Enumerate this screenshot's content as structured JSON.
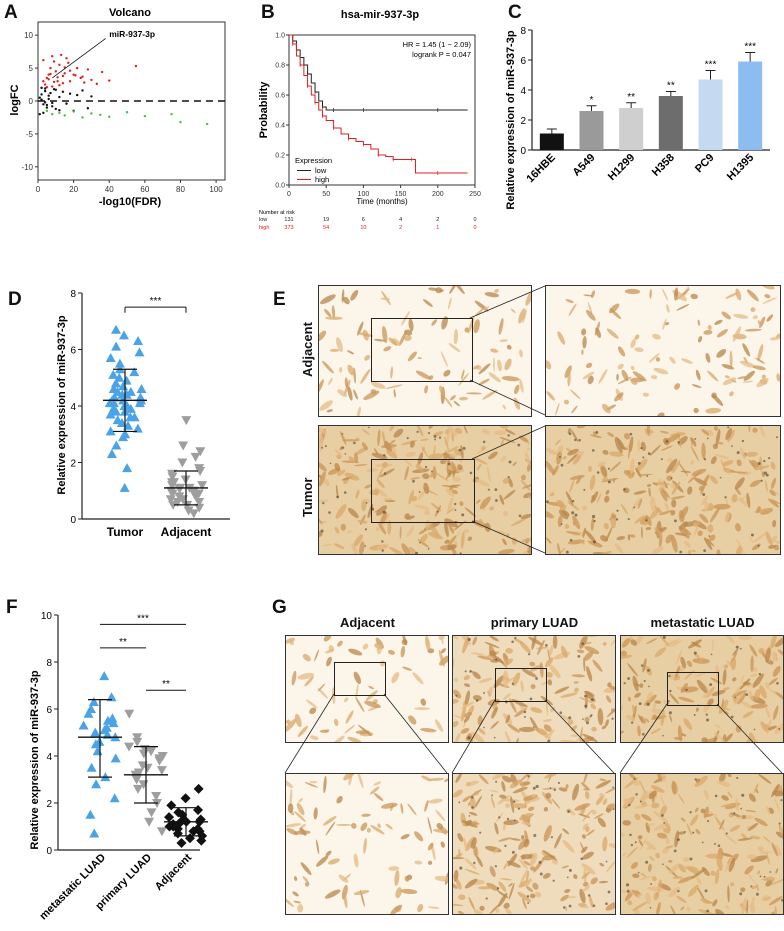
{
  "panels": {
    "A": {
      "label": "A",
      "chart_data": {
        "type": "scatter",
        "title": "Volcano",
        "xlabel": "-log10(FDR)",
        "ylabel": "logFC",
        "xlim": [
          0,
          105
        ],
        "ylim": [
          -12,
          12
        ],
        "xticks": [
          "0",
          "20",
          "40",
          "60",
          "80",
          "100"
        ],
        "yticks": [
          "-10",
          "-5",
          "0",
          "5",
          "10"
        ],
        "annotation": "miR-937-3p",
        "series": [
          {
            "name": "",
            "color": "#e02020",
            "x": [
              2,
              3,
              4,
              5,
              6,
              7,
              8,
              9,
              10,
              11,
              12,
              13,
              14,
              15,
              16,
              18,
              20,
              22,
              24,
              26,
              28,
              30,
              33,
              36,
              40,
              55,
              8,
              12,
              15,
              6,
              9,
              18,
              25,
              3,
              5,
              7,
              11,
              14,
              17,
              21
            ],
            "y": [
              2,
              3,
              2.5,
              3.5,
              4,
              5,
              2.2,
              6,
              4.5,
              3,
              5.5,
              7,
              3.8,
              4.2,
              6.5,
              3,
              4,
              5,
              3.5,
              2.8,
              4.8,
              3.2,
              2.6,
              4.4,
              3.1,
              5.3,
              6.8,
              2.4,
              5.1,
              3.3,
              2.9,
              4.6,
              3.7,
              6.2,
              2.1,
              4.1,
              3.6,
              2.7,
              5.8,
              3.9
            ]
          },
          {
            "name": "",
            "color": "#111111",
            "x": [
              1,
              2,
              3,
              4,
              5,
              6,
              7,
              8,
              9,
              10,
              12,
              14,
              16,
              18,
              20,
              22,
              25,
              28,
              30,
              1,
              2,
              3,
              4,
              5,
              6,
              8,
              10,
              12,
              2,
              4
            ],
            "y": [
              0.5,
              1,
              -0.5,
              1.5,
              -1,
              0.8,
              1.2,
              -0.8,
              1.8,
              -1.2,
              0.6,
              1.4,
              -0.4,
              1.1,
              -1.5,
              0.9,
              1.6,
              -1.1,
              0.7,
              -2,
              2,
              -1.8,
              1.9,
              -0.6,
              0.3,
              -0.3,
              1.7,
              -1.4,
              0.2,
              -0.2
            ]
          },
          {
            "name": "",
            "color": "#40c040",
            "x": [
              5,
              8,
              12,
              15,
              20,
              25,
              30,
              35,
              40,
              50,
              60,
              75,
              80,
              95
            ],
            "y": [
              -1.5,
              -2,
              -1.8,
              -2.2,
              -1.6,
              -2.5,
              -1.9,
              -2.1,
              -2.4,
              -1.7,
              -2.3,
              -2,
              -3.2,
              -3.5
            ]
          }
        ]
      }
    },
    "B": {
      "label": "B",
      "chart_data": {
        "type": "line",
        "title": "hsa-mir-937-3p",
        "xlabel": "Time (months)",
        "ylabel": "Probability",
        "xlim": [
          0,
          250
        ],
        "ylim": [
          0,
          1
        ],
        "xticks": [
          "0",
          "50",
          "100",
          "150",
          "200",
          "250"
        ],
        "yticks": [
          "0.0",
          "0.2",
          "0.4",
          "0.6",
          "0.8",
          "1.0"
        ],
        "hr_text": "HR = 1.45 (1 − 2.09)",
        "logrank_text": "logrank P = 0.047",
        "legend_title": "Expression",
        "series": [
          {
            "name": "low",
            "color": "#222222",
            "x": [
              0,
              5,
              10,
              15,
              20,
              25,
              30,
              35,
              40,
              45,
              50,
              60,
              80,
              100,
              150,
              200,
              240
            ],
            "y": [
              1,
              0.96,
              0.9,
              0.85,
              0.8,
              0.74,
              0.68,
              0.62,
              0.56,
              0.52,
              0.5,
              0.5,
              0.5,
              0.5,
              0.5,
              0.5,
              0.5
            ]
          },
          {
            "name": "high",
            "color": "#e02020",
            "x": [
              0,
              5,
              10,
              15,
              20,
              25,
              30,
              35,
              40,
              45,
              50,
              60,
              70,
              80,
              90,
              100,
              110,
              120,
              130,
              140,
              150,
              165,
              170,
              200,
              240
            ],
            "y": [
              1,
              0.94,
              0.86,
              0.8,
              0.73,
              0.66,
              0.6,
              0.55,
              0.5,
              0.46,
              0.43,
              0.38,
              0.34,
              0.31,
              0.29,
              0.27,
              0.24,
              0.2,
              0.19,
              0.17,
              0.17,
              0.17,
              0.08,
              0.08,
              0.08
            ]
          }
        ],
        "risk_table": {
          "header": "Number at risk",
          "rows": [
            {
              "name": "low",
              "color": "#222222",
              "values": [
                "131",
                "19",
                "6",
                "4",
                "2",
                "0"
              ]
            },
            {
              "name": "high",
              "color": "#e02020",
              "values": [
                "373",
                "54",
                "10",
                "2",
                "1",
                "0"
              ]
            }
          ]
        }
      }
    },
    "C": {
      "label": "C",
      "chart_data": {
        "type": "bar",
        "ylabel": "Relative expression of miR-937-3p",
        "ylim": [
          0,
          8
        ],
        "yticks": [
          "0",
          "2",
          "4",
          "6",
          "8"
        ],
        "categories": [
          "16HBE",
          "A549",
          "H1299",
          "H358",
          "PC9",
          "H1395"
        ],
        "values": [
          1.1,
          2.6,
          2.8,
          3.6,
          4.7,
          5.9
        ],
        "errors": [
          0.3,
          0.35,
          0.35,
          0.3,
          0.6,
          0.6
        ],
        "significance": [
          "",
          "*",
          "**",
          "**",
          "***",
          "***"
        ],
        "colors": [
          "#111111",
          "#9a9a9a",
          "#cfcfcf",
          "#6d6d6d",
          "#c5d9f1",
          "#8dbdf0"
        ]
      }
    },
    "D": {
      "label": "D",
      "chart_data": {
        "type": "scatter",
        "ylabel": "Relative expression of miR-937-3p",
        "ylim": [
          0,
          8
        ],
        "yticks": [
          "0",
          "2",
          "4",
          "6",
          "8"
        ],
        "categories": [
          "Tumor",
          "Adjacent"
        ],
        "significance": "***",
        "series": [
          {
            "name": "Tumor",
            "color": "#4aa3e6",
            "mean": 4.2,
            "sd_low": 3.1,
            "sd_high": 5.3,
            "values": [
              1.1,
              1.8,
              2.3,
              2.6,
              2.9,
              3.0,
              3.1,
              3.2,
              3.3,
              3.4,
              3.5,
              3.6,
              3.6,
              3.7,
              3.8,
              3.8,
              3.9,
              3.9,
              4.0,
              4.0,
              4.1,
              4.1,
              4.1,
              4.2,
              4.2,
              4.2,
              4.3,
              4.3,
              4.4,
              4.4,
              4.5,
              4.5,
              4.6,
              4.6,
              4.7,
              4.8,
              4.9,
              5.0,
              5.1,
              5.2,
              5.3,
              5.5,
              5.7,
              5.9,
              6.1,
              6.3,
              6.5,
              6.7
            ]
          },
          {
            "name": "Adjacent",
            "color": "#9e9e9e",
            "mean": 1.1,
            "sd_low": 0.5,
            "sd_high": 1.7,
            "values": [
              0.2,
              0.3,
              0.4,
              0.5,
              0.5,
              0.6,
              0.6,
              0.7,
              0.7,
              0.8,
              0.8,
              0.9,
              0.9,
              1.0,
              1.0,
              1.0,
              1.1,
              1.1,
              1.1,
              1.2,
              1.2,
              1.3,
              1.3,
              1.4,
              1.5,
              1.6,
              1.7,
              1.8,
              2.0,
              2.2,
              2.4,
              2.6,
              3.5
            ]
          }
        ]
      }
    },
    "E": {
      "label": "E",
      "row_labels": [
        "Adjacent",
        "Tumor"
      ]
    },
    "F": {
      "label": "F",
      "chart_data": {
        "type": "scatter",
        "ylabel": "Relative expression of miR-937-3p",
        "ylim": [
          0,
          10
        ],
        "yticks": [
          "0",
          "2",
          "4",
          "6",
          "8",
          "10"
        ],
        "categories": [
          "metastatic LUAD",
          "primary LUAD",
          "Adjacent"
        ],
        "significance": [
          {
            "from": 0,
            "to": 1,
            "label": "**"
          },
          {
            "from": 0,
            "to": 2,
            "label": "***"
          },
          {
            "from": 1,
            "to": 2,
            "label": "**"
          }
        ],
        "series": [
          {
            "name": "metastatic LUAD",
            "color": "#4aa3e6",
            "marker": "triangle-up",
            "mean": 4.8,
            "sd_low": 3.1,
            "sd_high": 6.4,
            "values": [
              0.7,
              1.5,
              2.2,
              2.8,
              3.1,
              3.5,
              3.9,
              4.2,
              4.5,
              4.6,
              4.8,
              4.9,
              5.0,
              5.1,
              5.2,
              5.3,
              5.4,
              5.5,
              5.6,
              5.8,
              6.0,
              6.3,
              6.5,
              7.4
            ]
          },
          {
            "name": "primary LUAD",
            "color": "#9e9e9e",
            "marker": "triangle-down",
            "mean": 3.2,
            "sd_low": 2.0,
            "sd_high": 4.4,
            "values": [
              0.8,
              1.2,
              1.6,
              2.0,
              2.3,
              2.6,
              2.8,
              3.0,
              3.1,
              3.2,
              3.3,
              3.4,
              3.5,
              3.6,
              3.8,
              3.9,
              4.0,
              4.1,
              4.2,
              4.3,
              4.4,
              4.6,
              4.8,
              5.8
            ]
          },
          {
            "name": "Adjacent",
            "color": "#111111",
            "marker": "diamond",
            "mean": 1.2,
            "sd_low": 0.6,
            "sd_high": 1.8,
            "values": [
              0.3,
              0.4,
              0.5,
              0.6,
              0.7,
              0.8,
              0.8,
              0.9,
              0.9,
              1.0,
              1.0,
              1.1,
              1.1,
              1.2,
              1.2,
              1.3,
              1.3,
              1.4,
              1.5,
              1.6,
              1.7,
              1.9,
              2.2,
              2.6
            ]
          }
        ]
      }
    },
    "G": {
      "label": "G",
      "column_titles": [
        "Adjacent",
        "primary LUAD",
        "metastatic LUAD"
      ]
    }
  }
}
